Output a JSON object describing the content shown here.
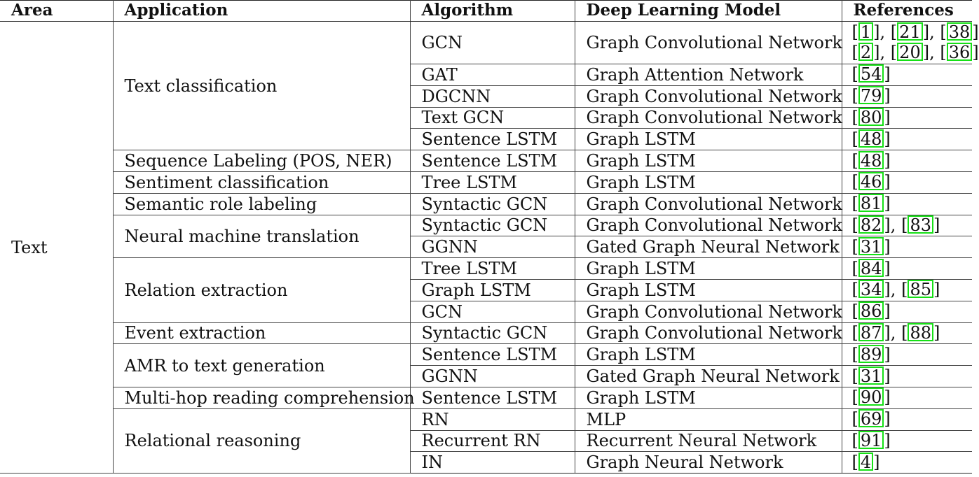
{
  "headers": {
    "area": "Area",
    "application": "Application",
    "algorithm": "Algorithm",
    "model": "Deep Learning Model",
    "references": "References"
  },
  "area_label": "Text",
  "applications": {
    "text_classification": "Text classification",
    "sequence_labeling": "Sequence Labeling (POS, NER)",
    "sentiment": "Sentiment classification",
    "semantic_role": "Semantic role labeling",
    "nmt": "Neural machine translation",
    "relation": "Relation extraction",
    "event": "Event extraction",
    "amr": "AMR to text generation",
    "multihop": "Multi-hop reading comprehension",
    "relational": "Relational reasoning"
  },
  "rows": [
    {
      "algorithm": "GCN",
      "model": "Graph Convolutional Network",
      "ref_lines": [
        [
          "1",
          "21",
          "38"
        ],
        [
          "2",
          "20",
          "36"
        ]
      ]
    },
    {
      "algorithm": "GAT",
      "model": "Graph Attention Network",
      "ref_lines": [
        [
          "54"
        ]
      ]
    },
    {
      "algorithm": "DGCNN",
      "model": "Graph Convolutional Network",
      "ref_lines": [
        [
          "79"
        ]
      ]
    },
    {
      "algorithm": "Text GCN",
      "model": "Graph Convolutional Network",
      "ref_lines": [
        [
          "80"
        ]
      ]
    },
    {
      "algorithm": "Sentence LSTM",
      "model": "Graph LSTM",
      "ref_lines": [
        [
          "48"
        ]
      ]
    },
    {
      "algorithm": "Sentence LSTM",
      "model": "Graph LSTM",
      "ref_lines": [
        [
          "48"
        ]
      ]
    },
    {
      "algorithm": "Tree LSTM",
      "model": "Graph LSTM",
      "ref_lines": [
        [
          "46"
        ]
      ]
    },
    {
      "algorithm": "Syntactic GCN",
      "model": "Graph Convolutional Network",
      "ref_lines": [
        [
          "81"
        ]
      ]
    },
    {
      "algorithm": "Syntactic GCN",
      "model": "Graph Convolutional Network",
      "ref_lines": [
        [
          "82",
          "83"
        ]
      ]
    },
    {
      "algorithm": "GGNN",
      "model": "Gated Graph Neural Network",
      "ref_lines": [
        [
          "31"
        ]
      ]
    },
    {
      "algorithm": "Tree LSTM",
      "model": "Graph LSTM",
      "ref_lines": [
        [
          "84"
        ]
      ]
    },
    {
      "algorithm": "Graph LSTM",
      "model": "Graph LSTM",
      "ref_lines": [
        [
          "34",
          "85"
        ]
      ]
    },
    {
      "algorithm": "GCN",
      "model": "Graph Convolutional Network",
      "ref_lines": [
        [
          "86"
        ]
      ]
    },
    {
      "algorithm": "Syntactic GCN",
      "model": "Graph Convolutional Network",
      "ref_lines": [
        [
          "87",
          "88"
        ]
      ]
    },
    {
      "algorithm": "Sentence LSTM",
      "model": "Graph LSTM",
      "ref_lines": [
        [
          "89"
        ]
      ]
    },
    {
      "algorithm": "GGNN",
      "model": "Gated Graph Neural Network",
      "ref_lines": [
        [
          "31"
        ]
      ]
    },
    {
      "algorithm": "Sentence LSTM",
      "model": "Graph LSTM",
      "ref_lines": [
        [
          "90"
        ]
      ]
    },
    {
      "algorithm": "RN",
      "model": "MLP",
      "ref_lines": [
        [
          "69"
        ]
      ]
    },
    {
      "algorithm": "Recurrent RN",
      "model": "Recurrent Neural Network",
      "ref_lines": [
        [
          "91"
        ]
      ]
    },
    {
      "algorithm": "IN",
      "model": "Graph Neural Network",
      "ref_lines": [
        [
          "4"
        ]
      ]
    }
  ],
  "citation_box_color": "#16e016"
}
